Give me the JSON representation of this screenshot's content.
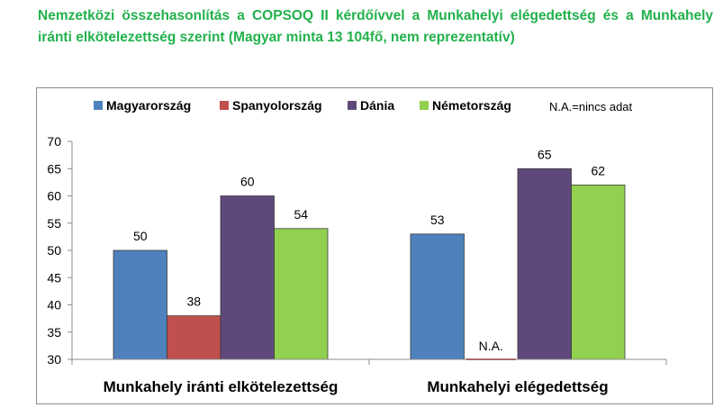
{
  "title": "Nemzetközi összehasonlítás a COPSOQ II kérdőívvel a Munkahelyi elégedettség és a Munkahely iránti elkötelezettség szerint (Magyar minta 13 104fő, nem reprezentatív)",
  "chart_data": {
    "type": "bar",
    "categories": [
      "Munkahely iránti elkötelezettség",
      "Munkahelyi elégedettség"
    ],
    "series": [
      {
        "name": "Magyarország",
        "color": "#4f81bd",
        "values": [
          50,
          53
        ]
      },
      {
        "name": "Spanyolország",
        "color": "#c0504d",
        "values": [
          38,
          null
        ]
      },
      {
        "name": "Dánia",
        "color": "#5f497a",
        "values": [
          60,
          65
        ]
      },
      {
        "name": "Németország",
        "color": "#92d050",
        "values": [
          54,
          62
        ]
      }
    ],
    "ylim": [
      30,
      70
    ],
    "yticks": [
      30,
      35,
      40,
      45,
      50,
      55,
      60,
      65,
      70
    ],
    "grid": false,
    "legend_position": "top",
    "note": "N.A.=nincs adat",
    "na_label": "N.A."
  }
}
